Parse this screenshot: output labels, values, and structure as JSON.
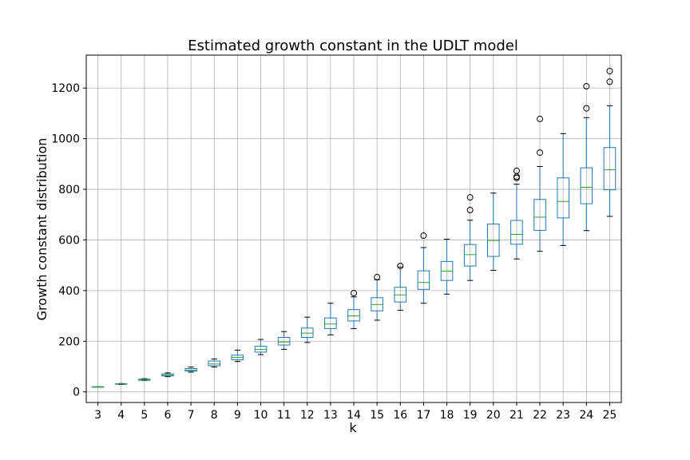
{
  "chart_data": {
    "type": "box",
    "title": "Estimated growth constant in the UDLT model",
    "xlabel": "k",
    "ylabel": "Growth constant distribution",
    "ylim": [
      -42,
      1330
    ],
    "yticks": [
      0,
      200,
      400,
      600,
      800,
      1000,
      1200
    ],
    "grid": true,
    "categories": [
      "3",
      "4",
      "5",
      "6",
      "7",
      "8",
      "9",
      "10",
      "11",
      "12",
      "13",
      "14",
      "15",
      "16",
      "17",
      "18",
      "19",
      "20",
      "21",
      "22",
      "23",
      "24",
      "25"
    ],
    "boxes": [
      {
        "whislo": 20,
        "q1": 20,
        "med": 20,
        "q3": 20,
        "whishi": 20,
        "fliers": []
      },
      {
        "whislo": 29,
        "q1": 30,
        "med": 31,
        "q3": 32,
        "whishi": 33,
        "fliers": []
      },
      {
        "whislo": 45,
        "q1": 46,
        "med": 48,
        "q3": 50,
        "whishi": 52,
        "fliers": []
      },
      {
        "whislo": 60,
        "q1": 63,
        "med": 66,
        "q3": 71,
        "whishi": 75,
        "fliers": []
      },
      {
        "whislo": 78,
        "q1": 82,
        "med": 86,
        "q3": 92,
        "whishi": 98,
        "fliers": []
      },
      {
        "whislo": 98,
        "q1": 103,
        "med": 110,
        "q3": 122,
        "whishi": 130,
        "fliers": []
      },
      {
        "whislo": 120,
        "q1": 127,
        "med": 136,
        "q3": 145,
        "whishi": 165,
        "fliers": []
      },
      {
        "whislo": 147,
        "q1": 157,
        "med": 168,
        "q3": 180,
        "whishi": 207,
        "fliers": []
      },
      {
        "whislo": 168,
        "q1": 185,
        "med": 197,
        "q3": 215,
        "whishi": 238,
        "fliers": []
      },
      {
        "whislo": 195,
        "q1": 215,
        "med": 232,
        "q3": 252,
        "whishi": 295,
        "fliers": []
      },
      {
        "whislo": 225,
        "q1": 250,
        "med": 268,
        "q3": 292,
        "whishi": 350,
        "fliers": []
      },
      {
        "whislo": 250,
        "q1": 280,
        "med": 300,
        "q3": 325,
        "whishi": 375,
        "fliers": [
          390
        ]
      },
      {
        "whislo": 283,
        "q1": 320,
        "med": 345,
        "q3": 372,
        "whishi": 443,
        "fliers": [
          453
        ]
      },
      {
        "whislo": 322,
        "q1": 355,
        "med": 383,
        "q3": 413,
        "whishi": 493,
        "fliers": [
          497
        ]
      },
      {
        "whislo": 350,
        "q1": 405,
        "med": 432,
        "q3": 478,
        "whishi": 570,
        "fliers": [
          617
        ]
      },
      {
        "whislo": 386,
        "q1": 440,
        "med": 477,
        "q3": 515,
        "whishi": 603,
        "fliers": []
      },
      {
        "whislo": 440,
        "q1": 497,
        "med": 542,
        "q3": 582,
        "whishi": 678,
        "fliers": [
          718,
          768
        ]
      },
      {
        "whislo": 480,
        "q1": 535,
        "med": 598,
        "q3": 663,
        "whishi": 785,
        "fliers": []
      },
      {
        "whislo": 525,
        "q1": 583,
        "med": 622,
        "q3": 677,
        "whishi": 820,
        "fliers": [
          845,
          850,
          873
        ]
      },
      {
        "whislo": 555,
        "q1": 638,
        "med": 690,
        "q3": 760,
        "whishi": 890,
        "fliers": [
          945,
          1078
        ]
      },
      {
        "whislo": 578,
        "q1": 687,
        "med": 752,
        "q3": 845,
        "whishi": 1020,
        "fliers": []
      },
      {
        "whislo": 637,
        "q1": 743,
        "med": 808,
        "q3": 885,
        "whishi": 1083,
        "fliers": [
          1120,
          1207
        ]
      },
      {
        "whislo": 693,
        "q1": 798,
        "med": 877,
        "q3": 965,
        "whishi": 1130,
        "fliers": [
          1225,
          1267
        ]
      }
    ]
  }
}
